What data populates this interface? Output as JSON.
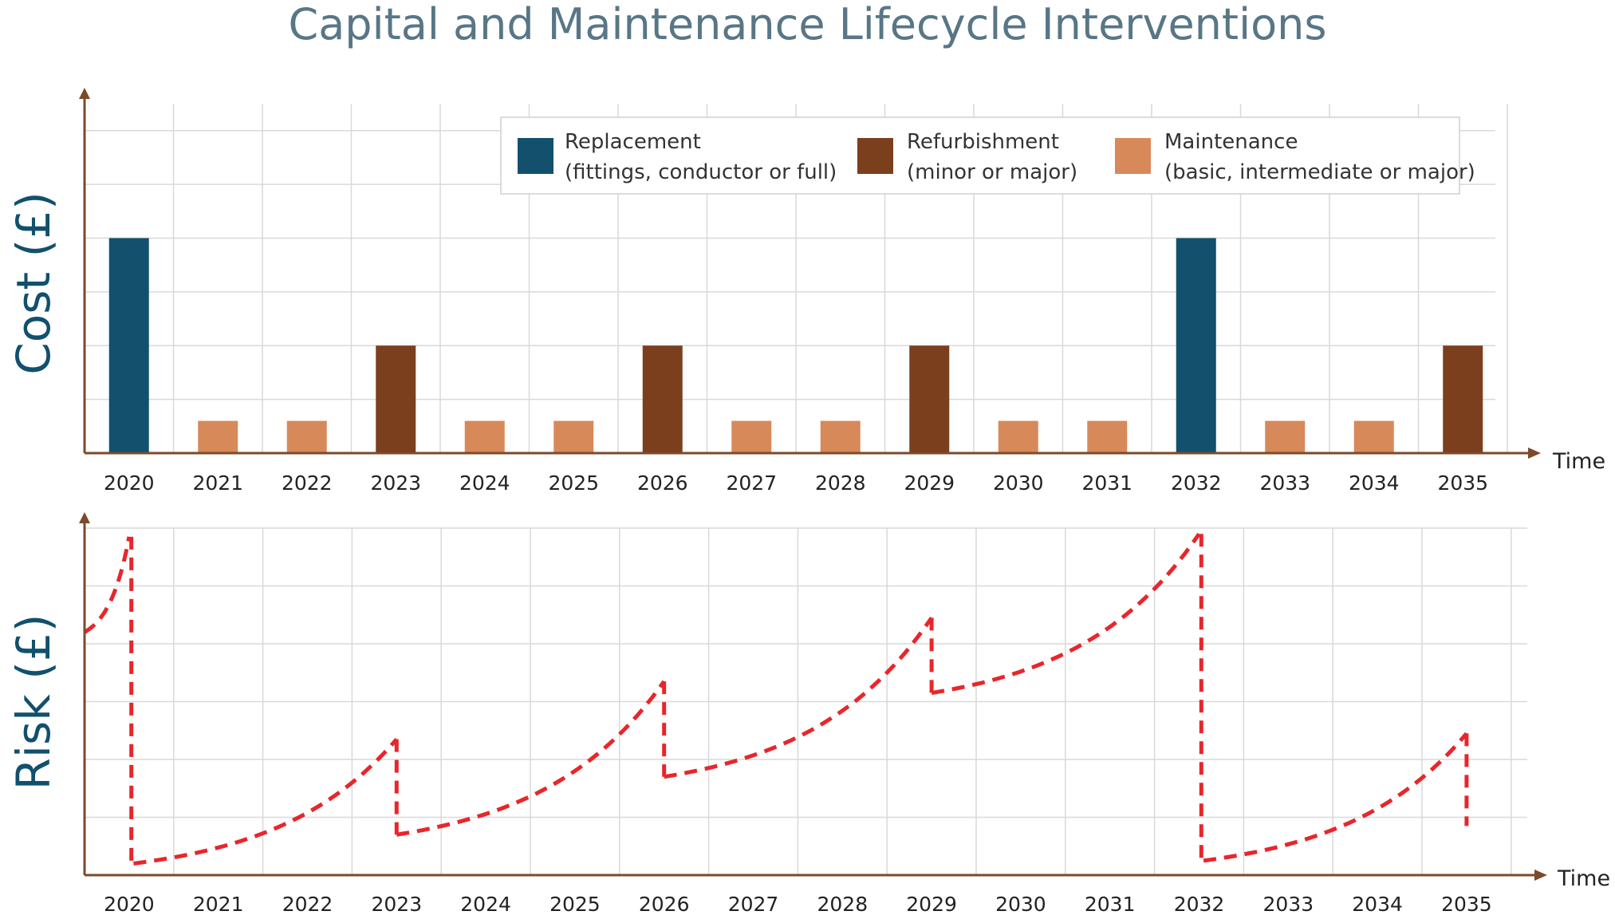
{
  "title": "Capital and Maintenance Lifecycle Interventions",
  "colors": {
    "axis": "#7b4a2b",
    "grid": "#d9d9d9",
    "risk_line": "#e8262b",
    "title": "#587686",
    "axis_label": "#11506e"
  },
  "chart_data": [
    {
      "type": "bar",
      "title": "Capital and Maintenance Lifecycle Interventions",
      "ylabel": "Cost (£)",
      "xlabel": "Time",
      "categories": [
        "2020",
        "2021",
        "2022",
        "2023",
        "2024",
        "2025",
        "2026",
        "2027",
        "2028",
        "2029",
        "2030",
        "2031",
        "2032",
        "2033",
        "2034",
        "2035"
      ],
      "ylim": [
        0,
        6.5
      ],
      "grid": true,
      "legend_position": "top-right",
      "series": [
        {
          "name": "Replacement",
          "subtitle": "(fittings, conductor or full)",
          "color": "#12506e",
          "values": [
            4,
            0,
            0,
            0,
            0,
            0,
            0,
            0,
            0,
            0,
            0,
            0,
            4,
            0,
            0,
            0
          ]
        },
        {
          "name": "Refurbishment",
          "subtitle": "(minor or major)",
          "color": "#7c3f1d",
          "values": [
            0,
            0,
            0,
            2,
            0,
            0,
            2,
            0,
            0,
            2,
            0,
            0,
            0,
            0,
            0,
            2
          ]
        },
        {
          "name": "Maintenance",
          "subtitle": "(basic, intermediate or major)",
          "color": "#d8895a",
          "values": [
            0,
            0.6,
            0.6,
            0,
            0.6,
            0.6,
            0,
            0.6,
            0.6,
            0,
            0.6,
            0.6,
            0,
            0.6,
            0.6,
            0
          ]
        }
      ]
    },
    {
      "type": "line",
      "ylabel": "Risk (£)",
      "xlabel": "Time",
      "categories": [
        "2020",
        "2021",
        "2022",
        "2023",
        "2024",
        "2025",
        "2026",
        "2027",
        "2028",
        "2029",
        "2030",
        "2031",
        "2032",
        "2033",
        "2034",
        "2035"
      ],
      "ylim": [
        0,
        6
      ],
      "grid": true,
      "series": [
        {
          "color": "#e8262b",
          "style": "dashed",
          "segments": [
            {
              "x0": 0.0,
              "x1": 0.5,
              "y0": 4.2,
              "y1": 5.85
            },
            {
              "x0": 0.55,
              "x1": 3.5,
              "y0": 0.2,
              "y1": 2.35
            },
            {
              "x0": 3.5,
              "x1": 6.5,
              "y0": 0.7,
              "y1": 3.35
            },
            {
              "x0": 6.5,
              "x1": 9.5,
              "y0": 1.7,
              "y1": 4.45
            },
            {
              "x0": 9.5,
              "x1": 12.5,
              "y0": 3.15,
              "y1": 5.9
            },
            {
              "x0": 12.55,
              "x1": 15.5,
              "y0": 0.25,
              "y1": 2.45
            }
          ],
          "drops": [
            {
              "x": 0.525,
              "from": 5.85,
              "to": 0.2
            },
            {
              "x": 3.5,
              "from": 2.35,
              "to": 0.7
            },
            {
              "x": 6.5,
              "from": 3.35,
              "to": 1.7
            },
            {
              "x": 9.5,
              "from": 4.45,
              "to": 3.15
            },
            {
              "x": 12.525,
              "from": 5.9,
              "to": 0.25
            },
            {
              "x": 15.5,
              "from": 2.45,
              "to": 0.85
            }
          ]
        }
      ]
    }
  ]
}
